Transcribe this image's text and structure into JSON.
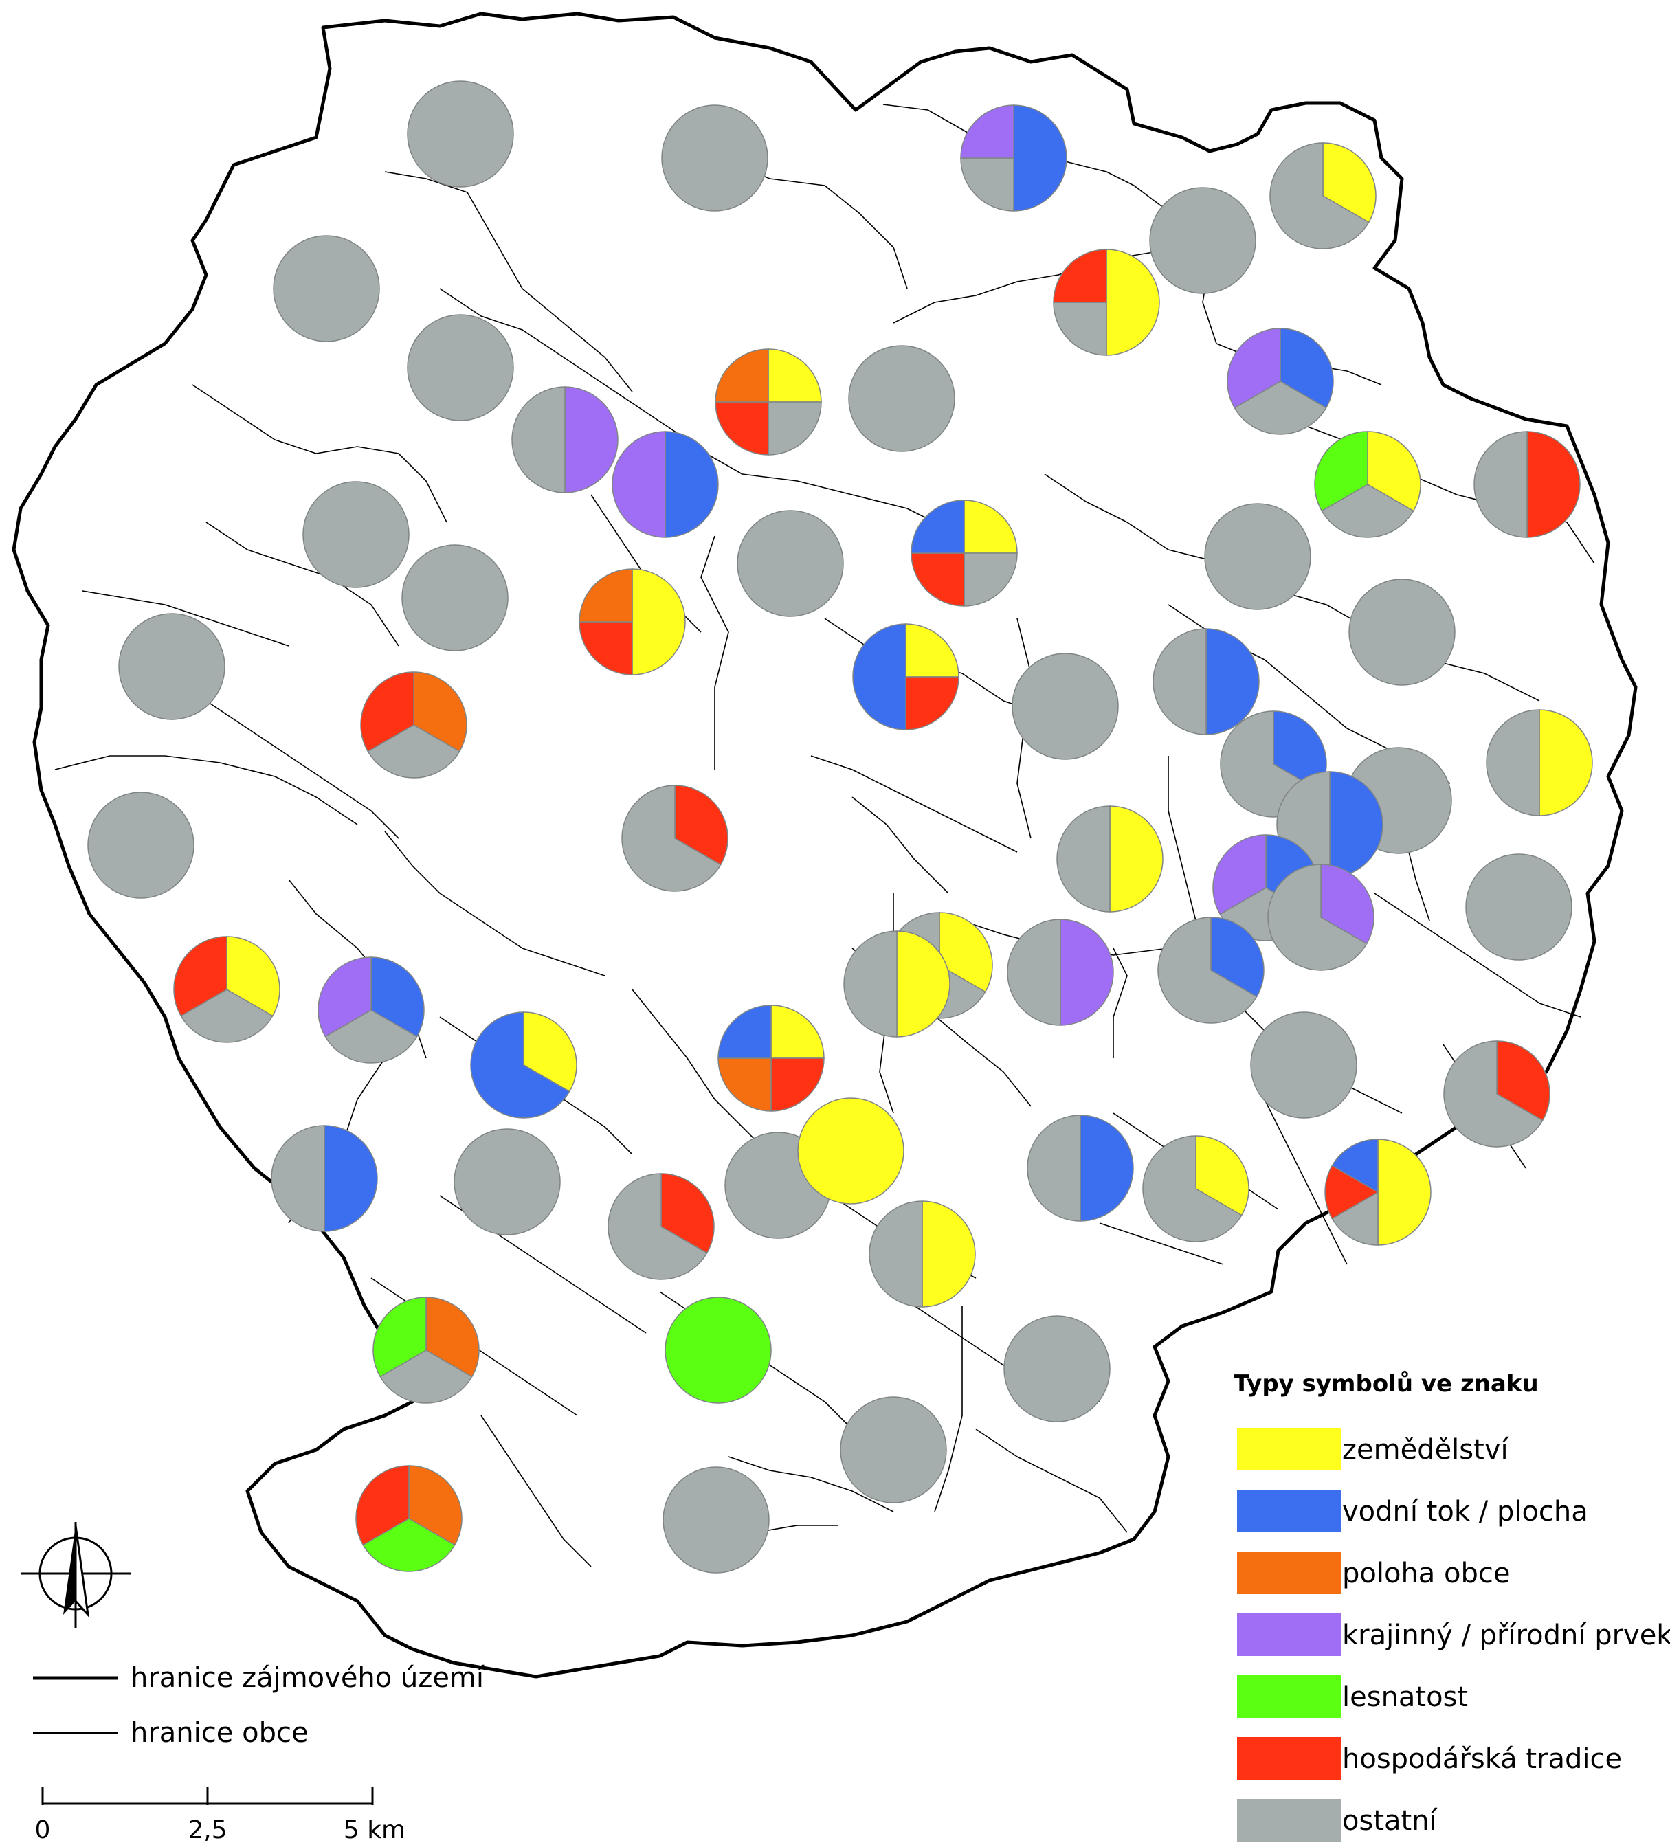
{
  "colors": {
    "zemedelstvi": "#ffff1e",
    "vodni": "#3c6ef0",
    "poloha": "#f56e0f",
    "krajinny": "#a06ef5",
    "lesnatost": "#5aff12",
    "hospodarska": "#ff3214",
    "ostatni": "#a5adad"
  },
  "legend": {
    "title": "Typy symbolů ve znaku",
    "items": [
      {
        "key": "zemedelstvi",
        "label": "zemědělství"
      },
      {
        "key": "vodni",
        "label": "vodní tok / plocha"
      },
      {
        "key": "poloha",
        "label": "poloha obce"
      },
      {
        "key": "krajinny",
        "label": "krajinný / přírodní prvek"
      },
      {
        "key": "lesnatost",
        "label": "lesnatost"
      },
      {
        "key": "hospodarska",
        "label": "hospodářská tradice"
      },
      {
        "key": "ostatni",
        "label": "ostatní"
      }
    ]
  },
  "boundary_legend": {
    "study_area": "hranice zájmového území",
    "municipality": "hranice obce"
  },
  "scale_bar": {
    "labels": [
      "0",
      "2,5",
      "5 km"
    ]
  },
  "municipalities": [
    {
      "slices": [
        {
          "type": "ostatni",
          "value": 1
        }
      ]
    },
    {
      "slices": [
        {
          "type": "ostatni",
          "value": 1
        }
      ]
    },
    {
      "slices": [
        {
          "type": "vodni",
          "value": 2
        },
        {
          "type": "ostatni",
          "value": 1
        },
        {
          "type": "krajinny",
          "value": 1
        }
      ]
    },
    {
      "slices": [
        {
          "type": "zemedelstvi",
          "value": 1
        },
        {
          "type": "ostatni",
          "value": 2
        }
      ]
    },
    {
      "slices": [
        {
          "type": "ostatni",
          "value": 1
        }
      ]
    },
    {
      "slices": [
        {
          "type": "ostatni",
          "value": 1
        }
      ]
    },
    {
      "slices": [
        {
          "type": "zemedelstvi",
          "value": 2
        },
        {
          "type": "ostatni",
          "value": 1
        },
        {
          "type": "hospodarska",
          "value": 1
        }
      ]
    },
    {
      "slices": [
        {
          "type": "ostatni",
          "value": 1
        }
      ]
    },
    {
      "slices": [
        {
          "type": "zemedelstvi",
          "value": 1
        },
        {
          "type": "ostatni",
          "value": 1
        },
        {
          "type": "hospodarska",
          "value": 1
        },
        {
          "type": "poloha",
          "value": 1
        }
      ]
    },
    {
      "slices": [
        {
          "type": "ostatni",
          "value": 1
        }
      ]
    },
    {
      "slices": [
        {
          "type": "krajinny",
          "value": 1
        },
        {
          "type": "ostatni",
          "value": 1
        }
      ]
    },
    {
      "slices": [
        {
          "type": "vodni",
          "value": 1
        },
        {
          "type": "krajinny",
          "value": 1
        }
      ]
    },
    {
      "slices": [
        {
          "type": "vodni",
          "value": 1
        },
        {
          "type": "ostatni",
          "value": 1
        },
        {
          "type": "krajinny",
          "value": 1
        }
      ]
    },
    {
      "slices": [
        {
          "type": "zemedelstvi",
          "value": 1
        },
        {
          "type": "ostatni",
          "value": 1
        },
        {
          "type": "lesnatost",
          "value": 1
        }
      ]
    },
    {
      "slices": [
        {
          "type": "hospodarska",
          "value": 1
        },
        {
          "type": "ostatni",
          "value": 1
        }
      ]
    },
    {
      "slices": [
        {
          "type": "ostatni",
          "value": 1
        }
      ]
    },
    {
      "slices": [
        {
          "type": "ostatni",
          "value": 1
        }
      ]
    },
    {
      "slices": [
        {
          "type": "ostatni",
          "value": 1
        }
      ]
    },
    {
      "slices": [
        {
          "type": "zemedelstvi",
          "value": 1
        },
        {
          "type": "ostatni",
          "value": 1
        },
        {
          "type": "hospodarska",
          "value": 1
        },
        {
          "type": "vodni",
          "value": 1
        }
      ]
    },
    {
      "slices": [
        {
          "type": "ostatni",
          "value": 1
        }
      ]
    },
    {
      "slices": [
        {
          "type": "ostatni",
          "value": 1
        }
      ]
    },
    {
      "slices": [
        {
          "type": "zemedelstvi",
          "value": 2
        },
        {
          "type": "hospodarska",
          "value": 1
        },
        {
          "type": "poloha",
          "value": 1
        }
      ]
    },
    {
      "slices": [
        {
          "type": "ostatni",
          "value": 1
        }
      ]
    },
    {
      "slices": [
        {
          "type": "zemedelstvi",
          "value": 1
        },
        {
          "type": "hospodarska",
          "value": 1
        },
        {
          "type": "vodni",
          "value": 2
        }
      ]
    },
    {
      "slices": [
        {
          "type": "vodni",
          "value": 1
        },
        {
          "type": "ostatni",
          "value": 1
        }
      ]
    },
    {
      "slices": [
        {
          "type": "ostatni",
          "value": 1
        }
      ]
    },
    {
      "slices": [
        {
          "type": "poloha",
          "value": 1
        },
        {
          "type": "ostatni",
          "value": 1
        },
        {
          "type": "hospodarska",
          "value": 1
        }
      ]
    },
    {
      "slices": [
        {
          "type": "ostatni",
          "value": 1
        }
      ]
    },
    {
      "slices": [
        {
          "type": "vodni",
          "value": 1
        },
        {
          "type": "ostatni",
          "value": 2
        }
      ]
    },
    {
      "slices": [
        {
          "type": "vodni",
          "value": 1
        },
        {
          "type": "ostatni",
          "value": 1
        }
      ]
    },
    {
      "slices": [
        {
          "type": "zemedelstvi",
          "value": 1
        },
        {
          "type": "ostatni",
          "value": 1
        }
      ]
    },
    {
      "slices": [
        {
          "type": "hospodarska",
          "value": 1
        },
        {
          "type": "ostatni",
          "value": 2
        }
      ]
    },
    {
      "slices": [
        {
          "type": "ostatni",
          "value": 1
        }
      ]
    },
    {
      "slices": [
        {
          "type": "zemedelstvi",
          "value": 1
        },
        {
          "type": "ostatni",
          "value": 1
        }
      ]
    },
    {
      "slices": [
        {
          "type": "vodni",
          "value": 1
        },
        {
          "type": "ostatni",
          "value": 1
        },
        {
          "type": "krajinny",
          "value": 1
        }
      ]
    },
    {
      "slices": [
        {
          "type": "ostatni",
          "value": 1
        }
      ]
    },
    {
      "slices": [
        {
          "type": "zemedelstvi",
          "value": 1
        },
        {
          "type": "ostatni",
          "value": 2
        }
      ]
    },
    {
      "slices": [
        {
          "type": "krajinny",
          "value": 1
        },
        {
          "type": "ostatni",
          "value": 1
        }
      ]
    },
    {
      "slices": [
        {
          "type": "vodni",
          "value": 1
        },
        {
          "type": "ostatni",
          "value": 2
        }
      ]
    },
    {
      "slices": [
        {
          "type": "krajinny",
          "value": 1
        },
        {
          "type": "ostatni",
          "value": 2
        }
      ]
    },
    {
      "slices": [
        {
          "type": "zemedelstvi",
          "value": 1
        },
        {
          "type": "ostatni",
          "value": 1
        },
        {
          "type": "hospodarska",
          "value": 1
        }
      ]
    },
    {
      "slices": [
        {
          "type": "vodni",
          "value": 1
        },
        {
          "type": "ostatni",
          "value": 1
        },
        {
          "type": "krajinny",
          "value": 1
        }
      ]
    },
    {
      "slices": [
        {
          "type": "zemedelstvi",
          "value": 1
        },
        {
          "type": "vodni",
          "value": 2
        }
      ]
    },
    {
      "slices": [
        {
          "type": "zemedelstvi",
          "value": 1
        },
        {
          "type": "ostatni",
          "value": 1
        }
      ]
    },
    {
      "slices": [
        {
          "type": "zemedelstvi",
          "value": 1
        },
        {
          "type": "hospodarska",
          "value": 1
        },
        {
          "type": "poloha",
          "value": 1
        },
        {
          "type": "vodni",
          "value": 1
        }
      ]
    },
    {
      "slices": [
        {
          "type": "ostatni",
          "value": 1
        }
      ]
    },
    {
      "slices": [
        {
          "type": "hospodarska",
          "value": 1
        },
        {
          "type": "ostatni",
          "value": 2
        }
      ]
    },
    {
      "slices": [
        {
          "type": "vodni",
          "value": 1
        },
        {
          "type": "ostatni",
          "value": 1
        }
      ]
    },
    {
      "slices": [
        {
          "type": "ostatni",
          "value": 1
        }
      ]
    },
    {
      "slices": [
        {
          "type": "zemedelstvi",
          "value": 1
        }
      ]
    },
    {
      "slices": [
        {
          "type": "vodni",
          "value": 1
        },
        {
          "type": "ostatni",
          "value": 1
        }
      ]
    },
    {
      "slices": [
        {
          "type": "zemedelstvi",
          "value": 1
        },
        {
          "type": "ostatni",
          "value": 2
        }
      ]
    },
    {
      "slices": [
        {
          "type": "zemedelstvi",
          "value": 3
        },
        {
          "type": "ostatni",
          "value": 1
        },
        {
          "type": "hospodarska",
          "value": 1
        },
        {
          "type": "vodni",
          "value": 1
        }
      ]
    },
    {
      "slices": [
        {
          "type": "zemedelstvi",
          "value": 1
        },
        {
          "type": "ostatni",
          "value": 1
        }
      ]
    },
    {
      "slices": [
        {
          "type": "hospodarska",
          "value": 1
        },
        {
          "type": "ostatni",
          "value": 2
        }
      ]
    },
    {
      "slices": [
        {
          "type": "ostatni",
          "value": 1
        }
      ]
    },
    {
      "slices": [
        {
          "type": "poloha",
          "value": 1
        },
        {
          "type": "ostatni",
          "value": 1
        },
        {
          "type": "lesnatost",
          "value": 1
        }
      ]
    },
    {
      "slices": [
        {
          "type": "lesnatost",
          "value": 1
        }
      ]
    },
    {
      "slices": [
        {
          "type": "ostatni",
          "value": 1
        }
      ]
    },
    {
      "slices": [
        {
          "type": "ostatni",
          "value": 1
        }
      ]
    },
    {
      "slices": [
        {
          "type": "ostatni",
          "value": 1
        }
      ]
    },
    {
      "slices": [
        {
          "type": "poloha",
          "value": 1
        },
        {
          "type": "lesnatost",
          "value": 1
        },
        {
          "type": "hospodarska",
          "value": 1
        }
      ]
    }
  ]
}
